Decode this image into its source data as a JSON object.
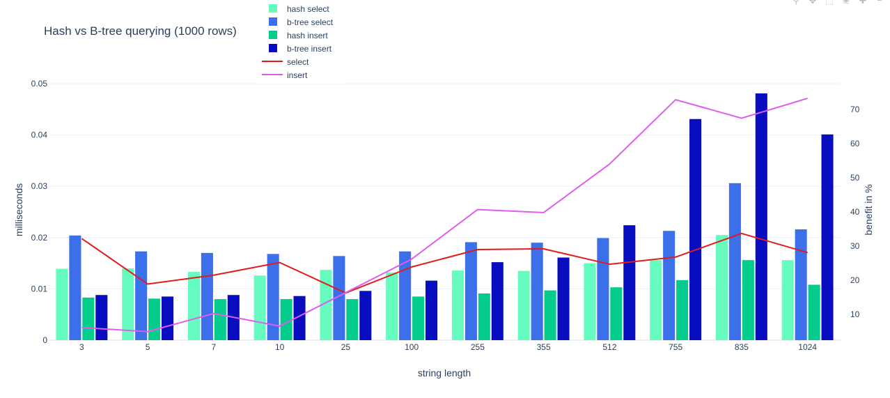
{
  "chart_data": {
    "type": "bar",
    "title": "Hash vs B-tree querying (1000 rows)",
    "xlabel": "string length",
    "ylabel": "milliseconds",
    "y2label": "benefit in %",
    "categories": [
      "3",
      "5",
      "7",
      "10",
      "25",
      "100",
      "255",
      "355",
      "512",
      "755",
      "835",
      "1024"
    ],
    "ylim": [
      0,
      0.05
    ],
    "y2lim": [
      2.5,
      77.5
    ],
    "yticks": [
      "0",
      "0.01",
      "0.02",
      "0.03",
      "0.04",
      "0.05"
    ],
    "y2ticks": [
      "10",
      "20",
      "30",
      "40",
      "50",
      "60",
      "70"
    ],
    "grid": true,
    "legend_position": "top",
    "series": [
      {
        "name": "hash select",
        "kind": "bar",
        "axis": "y",
        "color": "#66fcbf",
        "values": [
          0.0139,
          0.014,
          0.0133,
          0.0126,
          0.0137,
          0.0132,
          0.0136,
          0.0135,
          0.015,
          0.0156,
          0.0205,
          0.0156
        ]
      },
      {
        "name": "b-tree select",
        "kind": "bar",
        "axis": "y",
        "color": "#3c6fea",
        "values": [
          0.0204,
          0.0173,
          0.017,
          0.0168,
          0.0164,
          0.0173,
          0.0191,
          0.019,
          0.0199,
          0.0213,
          0.0306,
          0.0216
        ]
      },
      {
        "name": "hash insert",
        "kind": "bar",
        "axis": "y",
        "color": "#04cc8c",
        "values": [
          0.0083,
          0.0081,
          0.008,
          0.008,
          0.008,
          0.0085,
          0.0091,
          0.0097,
          0.0103,
          0.0117,
          0.0156,
          0.0108
        ]
      },
      {
        "name": "b-tree insert",
        "kind": "bar",
        "axis": "y",
        "color": "#080dc0",
        "values": [
          0.0088,
          0.0085,
          0.0088,
          0.0086,
          0.0096,
          0.0116,
          0.0152,
          0.0161,
          0.0224,
          0.0431,
          0.0481,
          0.0401
        ]
      },
      {
        "name": "select",
        "kind": "line",
        "axis": "y2",
        "color": "#e31a1a",
        "values": [
          32.2,
          18.9,
          21.5,
          25.2,
          16.3,
          23.9,
          29.0,
          29.2,
          24.7,
          26.8,
          33.7,
          28.1
        ]
      },
      {
        "name": "insert",
        "kind": "line",
        "axis": "y2",
        "color": "#e05cf0",
        "values": [
          6.2,
          5.0,
          10.3,
          6.6,
          16.4,
          26.2,
          40.7,
          39.8,
          54.0,
          72.8,
          67.4,
          73.2
        ]
      }
    ]
  }
}
